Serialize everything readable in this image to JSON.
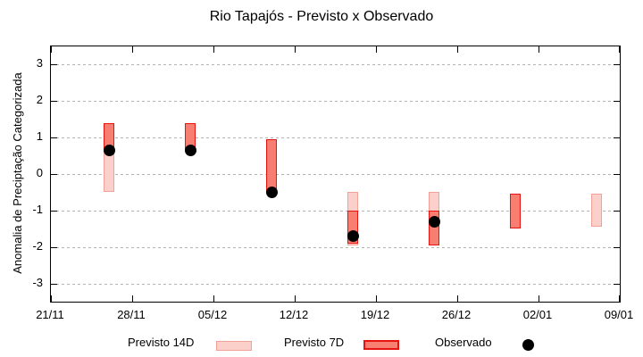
{
  "chart_data": {
    "type": "bar",
    "subtype": "range-bars-with-scatter-overlay",
    "title": "Rio Tapajós - Previsto x Observado",
    "xlabel": "",
    "ylabel": "Anomalia de Preciptação Categorizada",
    "ylim": [
      -3.5,
      3.5
    ],
    "yticks": [
      3,
      2,
      1,
      0,
      -1,
      -2,
      -3
    ],
    "grid": "horizontal-dashed",
    "legend_position": "bottom-outside",
    "x_axis": {
      "start_label": "21/11",
      "span_days": 49,
      "tick_days": [
        0,
        7,
        14,
        21,
        28,
        35,
        42,
        49
      ],
      "tick_labels": [
        "21/11",
        "28/11",
        "05/12",
        "12/12",
        "19/12",
        "26/12",
        "02/01",
        "09/01"
      ]
    },
    "colors": {
      "previsto14d_fill": "#fbd0ca",
      "previsto14d_border": "#f2a198",
      "previsto7d_fill": "#f97e72",
      "previsto7d_border": "#e51410",
      "observado": "#000000",
      "grid": "#b3b3b3",
      "axis": "#000000"
    },
    "series": [
      {
        "name": "Previsto 14D",
        "kind": "range-bar",
        "fill": "#fbd0ca",
        "border": "#f2a198",
        "points": [
          {
            "day": 5,
            "date": "26/11",
            "low": -0.5,
            "high": 0.65
          },
          {
            "day": 26,
            "date": "17/12",
            "low": -1.95,
            "high": -0.5
          },
          {
            "day": 33,
            "date": "24/12",
            "low": -1.95,
            "high": -0.5
          },
          {
            "day": 47,
            "date": "07/01",
            "low": -1.45,
            "high": -0.55
          }
        ]
      },
      {
        "name": "Previsto 7D",
        "kind": "range-bar",
        "fill": "#f97e72",
        "border": "#e51410",
        "points": [
          {
            "day": 5,
            "date": "26/11",
            "low": 0.65,
            "high": 1.4
          },
          {
            "day": 12,
            "date": "03/12",
            "low": 0.65,
            "high": 1.4
          },
          {
            "day": 19,
            "date": "10/12",
            "low": -0.5,
            "high": 0.95
          },
          {
            "day": 26,
            "date": "17/12",
            "low": -1.9,
            "high": -1.0
          },
          {
            "day": 33,
            "date": "24/12",
            "low": -1.95,
            "high": -1.0
          },
          {
            "day": 40,
            "date": "31/12",
            "low": -1.5,
            "high": -0.55
          }
        ]
      },
      {
        "name": "Observado",
        "kind": "scatter",
        "color": "#000000",
        "points": [
          {
            "day": 5,
            "date": "26/11",
            "value": 0.65
          },
          {
            "day": 12,
            "date": "03/12",
            "value": 0.65
          },
          {
            "day": 19,
            "date": "10/12",
            "value": -0.5
          },
          {
            "day": 26,
            "date": "17/12",
            "value": -1.7
          },
          {
            "day": 33,
            "date": "24/12",
            "value": -1.3
          }
        ]
      }
    ]
  },
  "legend": {
    "previsto_14d": "Previsto 14D",
    "previsto_7d": "Previsto 7D",
    "observado": "Observado"
  }
}
